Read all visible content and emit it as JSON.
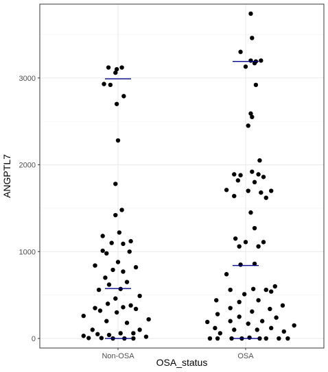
{
  "chart_data": {
    "type": "scatter",
    "title": "",
    "xlabel": "OSA_status",
    "ylabel": "ANGPTL7",
    "categories": [
      "Non-OSA",
      "OSA"
    ],
    "ylim": [
      -110,
      3850
    ],
    "y_ticks": [
      0,
      1000,
      2000,
      3000
    ],
    "grid": true,
    "legend": "none",
    "colors": {
      "point": "#000000",
      "quantile_line": "#00008b",
      "grid": "#ebebeb",
      "panel_border": "#333333"
    },
    "series": [
      {
        "category": "Non-OSA",
        "quantile_lines": [
          0,
          575,
          2990
        ],
        "points": [
          {
            "dx": -0.075,
            "y": 3120
          },
          {
            "dx": -0.01,
            "y": 3100
          },
          {
            "dx": 0.03,
            "y": 3120
          },
          {
            "dx": -0.02,
            "y": 3060
          },
          {
            "dx": -0.11,
            "y": 2930
          },
          {
            "dx": -0.06,
            "y": 2920
          },
          {
            "dx": 0.045,
            "y": 2790
          },
          {
            "dx": -0.01,
            "y": 2700
          },
          {
            "dx": 0.0,
            "y": 2280
          },
          {
            "dx": -0.02,
            "y": 1780
          },
          {
            "dx": 0.03,
            "y": 1480
          },
          {
            "dx": -0.02,
            "y": 1420
          },
          {
            "dx": 0.01,
            "y": 1220
          },
          {
            "dx": -0.12,
            "y": 1180
          },
          {
            "dx": 0.1,
            "y": 1120
          },
          {
            "dx": -0.05,
            "y": 1100
          },
          {
            "dx": 0.04,
            "y": 1090
          },
          {
            "dx": -0.12,
            "y": 1010
          },
          {
            "dx": 0.09,
            "y": 1000
          },
          {
            "dx": -0.09,
            "y": 980
          },
          {
            "dx": 0.0,
            "y": 880
          },
          {
            "dx": -0.18,
            "y": 840
          },
          {
            "dx": 0.14,
            "y": 820
          },
          {
            "dx": -0.04,
            "y": 790
          },
          {
            "dx": 0.04,
            "y": 770
          },
          {
            "dx": -0.1,
            "y": 700
          },
          {
            "dx": 0.07,
            "y": 650
          },
          {
            "dx": -0.07,
            "y": 620
          },
          {
            "dx": -0.15,
            "y": 560
          },
          {
            "dx": 0.02,
            "y": 570
          },
          {
            "dx": 0.17,
            "y": 490
          },
          {
            "dx": -0.02,
            "y": 460
          },
          {
            "dx": -0.08,
            "y": 400
          },
          {
            "dx": 0.1,
            "y": 380
          },
          {
            "dx": -0.18,
            "y": 350
          },
          {
            "dx": 0.04,
            "y": 360
          },
          {
            "dx": 0.14,
            "y": 340
          },
          {
            "dx": -0.14,
            "y": 320
          },
          {
            "dx": -0.01,
            "y": 300
          },
          {
            "dx": -0.27,
            "y": 260
          },
          {
            "dx": 0.24,
            "y": 220
          },
          {
            "dx": -0.09,
            "y": 200
          },
          {
            "dx": 0.07,
            "y": 180
          },
          {
            "dx": 0.17,
            "y": 100
          },
          {
            "dx": -0.2,
            "y": 100
          },
          {
            "dx": -0.16,
            "y": 50
          },
          {
            "dx": 0.02,
            "y": 60
          },
          {
            "dx": 0.12,
            "y": 60
          },
          {
            "dx": -0.07,
            "y": 40
          },
          {
            "dx": -0.27,
            "y": 30
          },
          {
            "dx": 0.22,
            "y": 20
          },
          {
            "dx": -0.23,
            "y": 5
          },
          {
            "dx": -0.13,
            "y": 5
          },
          {
            "dx": -0.04,
            "y": 0
          },
          {
            "dx": 0.05,
            "y": 0
          },
          {
            "dx": 0.12,
            "y": 0
          }
        ]
      },
      {
        "category": "OSA",
        "quantile_lines": [
          0,
          840,
          3190
        ],
        "points": [
          {
            "dx": 0.04,
            "y": 3740
          },
          {
            "dx": 0.05,
            "y": 3460
          },
          {
            "dx": -0.04,
            "y": 3300
          },
          {
            "dx": 0.04,
            "y": 3200
          },
          {
            "dx": 0.08,
            "y": 3190
          },
          {
            "dx": 0.12,
            "y": 3200
          },
          {
            "dx": 0.07,
            "y": 3170
          },
          {
            "dx": 0.0,
            "y": 3130
          },
          {
            "dx": 0.08,
            "y": 2920
          },
          {
            "dx": 0.04,
            "y": 2590
          },
          {
            "dx": 0.05,
            "y": 2550
          },
          {
            "dx": 0.02,
            "y": 2450
          },
          {
            "dx": 0.11,
            "y": 2050
          },
          {
            "dx": 0.05,
            "y": 1920
          },
          {
            "dx": -0.09,
            "y": 1890
          },
          {
            "dx": 0.1,
            "y": 1890
          },
          {
            "dx": -0.04,
            "y": 1880
          },
          {
            "dx": 0.14,
            "y": 1860
          },
          {
            "dx": -0.06,
            "y": 1820
          },
          {
            "dx": 0.07,
            "y": 1800
          },
          {
            "dx": -0.15,
            "y": 1710
          },
          {
            "dx": 0.02,
            "y": 1700
          },
          {
            "dx": 0.2,
            "y": 1700
          },
          {
            "dx": 0.12,
            "y": 1680
          },
          {
            "dx": -0.09,
            "y": 1640
          },
          {
            "dx": 0.16,
            "y": 1620
          },
          {
            "dx": 0.04,
            "y": 1450
          },
          {
            "dx": 0.07,
            "y": 1270
          },
          {
            "dx": -0.08,
            "y": 1150
          },
          {
            "dx": 0.0,
            "y": 1110
          },
          {
            "dx": 0.14,
            "y": 1110
          },
          {
            "dx": -0.05,
            "y": 1060
          },
          {
            "dx": 0.1,
            "y": 1060
          },
          {
            "dx": -0.04,
            "y": 850
          },
          {
            "dx": 0.07,
            "y": 860
          },
          {
            "dx": -0.15,
            "y": 740
          },
          {
            "dx": 0.23,
            "y": 600
          },
          {
            "dx": 0.06,
            "y": 570
          },
          {
            "dx": -0.12,
            "y": 560
          },
          {
            "dx": 0.16,
            "y": 560
          },
          {
            "dx": 0.2,
            "y": 540
          },
          {
            "dx": -0.01,
            "y": 510
          },
          {
            "dx": -0.23,
            "y": 440
          },
          {
            "dx": 0.1,
            "y": 440
          },
          {
            "dx": -0.05,
            "y": 420
          },
          {
            "dx": 0.29,
            "y": 380
          },
          {
            "dx": -0.12,
            "y": 350
          },
          {
            "dx": 0.19,
            "y": 340
          },
          {
            "dx": 0.05,
            "y": 310
          },
          {
            "dx": -0.22,
            "y": 280
          },
          {
            "dx": -0.05,
            "y": 250
          },
          {
            "dx": 0.24,
            "y": 240
          },
          {
            "dx": -0.12,
            "y": 200
          },
          {
            "dx": 0.13,
            "y": 200
          },
          {
            "dx": -0.3,
            "y": 190
          },
          {
            "dx": 0.02,
            "y": 170
          },
          {
            "dx": 0.38,
            "y": 150
          },
          {
            "dx": -0.24,
            "y": 120
          },
          {
            "dx": 0.2,
            "y": 120
          },
          {
            "dx": -0.09,
            "y": 100
          },
          {
            "dx": 0.09,
            "y": 100
          },
          {
            "dx": 0.3,
            "y": 80
          },
          {
            "dx": -0.2,
            "y": 60
          },
          {
            "dx": -0.28,
            "y": 0
          },
          {
            "dx": -0.22,
            "y": 0
          },
          {
            "dx": -0.11,
            "y": 0
          },
          {
            "dx": -0.03,
            "y": 0
          },
          {
            "dx": 0.03,
            "y": 10
          },
          {
            "dx": 0.11,
            "y": 0
          },
          {
            "dx": 0.16,
            "y": 0
          },
          {
            "dx": 0.26,
            "y": 0
          },
          {
            "dx": 0.33,
            "y": 0
          }
        ]
      }
    ]
  }
}
